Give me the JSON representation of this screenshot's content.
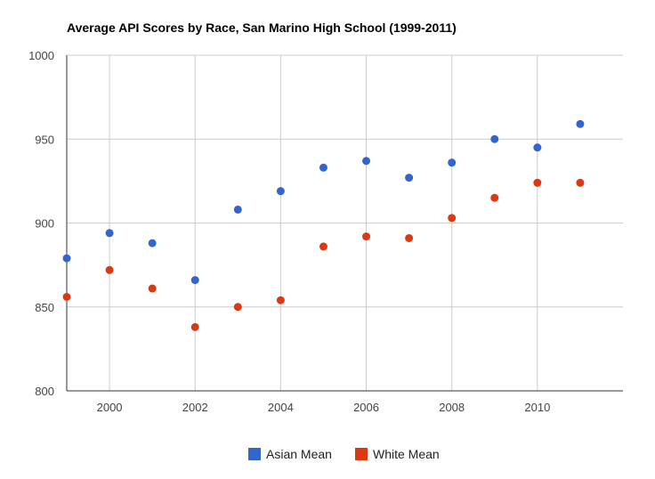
{
  "chart_data": {
    "type": "scatter",
    "title": "Average API Scores by Race, San Marino High School (1999-2011)",
    "xlabel": "",
    "ylabel": "",
    "xlim": [
      1999,
      2012
    ],
    "ylim": [
      800,
      1000
    ],
    "x_ticks": [
      2000,
      2002,
      2004,
      2006,
      2008,
      2010
    ],
    "y_ticks": [
      800,
      850,
      900,
      950,
      1000
    ],
    "grid": true,
    "legend_position": "bottom",
    "series": [
      {
        "name": "Asian Mean",
        "color": "#3366cc",
        "x": [
          1999,
          2000,
          2001,
          2002,
          2003,
          2004,
          2005,
          2006,
          2007,
          2008,
          2009,
          2010,
          2011
        ],
        "y": [
          879,
          894,
          888,
          866,
          908,
          919,
          933,
          937,
          927,
          936,
          950,
          945,
          959
        ]
      },
      {
        "name": "White Mean",
        "color": "#dc3912",
        "x": [
          1999,
          2000,
          2001,
          2002,
          2003,
          2004,
          2005,
          2006,
          2007,
          2008,
          2009,
          2010,
          2011
        ],
        "y": [
          856,
          872,
          861,
          838,
          850,
          854,
          886,
          892,
          891,
          903,
          915,
          924,
          924
        ]
      }
    ]
  }
}
